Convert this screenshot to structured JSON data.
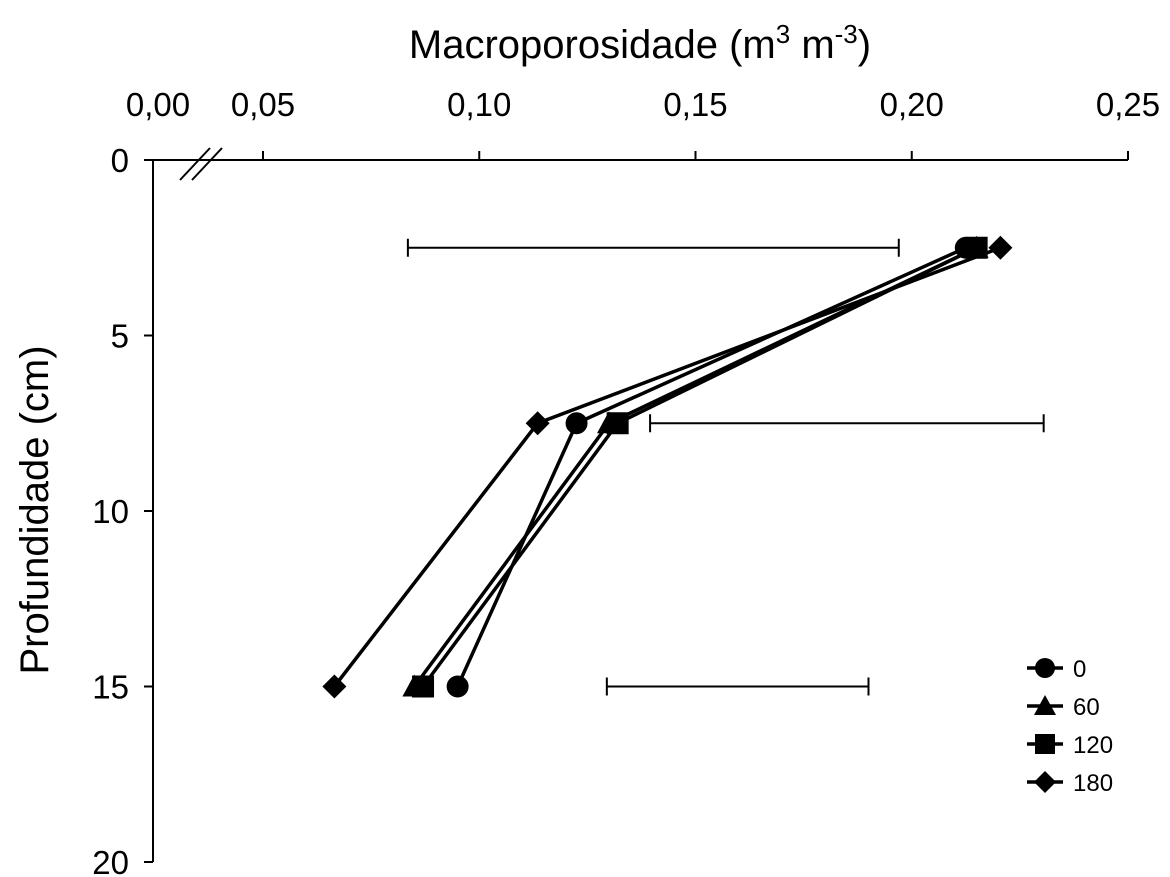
{
  "chart_data": {
    "type": "line",
    "orientation": "depth-profile",
    "title": "",
    "xlabel_text": "Macroporosidade (m",
    "xlabel_sup1": "3",
    "xlabel_mid": " m",
    "xlabel_sup2": "-3",
    "xlabel_end": ")",
    "ylabel": "Profundidade (cm)",
    "x_axis_position": "top",
    "x_axis_break": true,
    "x_ticks": [
      0.0,
      0.05,
      0.1,
      0.15,
      0.2,
      0.25
    ],
    "x_tick_labels": [
      "0,00",
      "0,05",
      "0,10",
      "0,15",
      "0,20",
      "0,25"
    ],
    "y_ticks": [
      0,
      5,
      10,
      15,
      20
    ],
    "y_tick_labels": [
      "0",
      "5",
      "10",
      "15",
      "20"
    ],
    "xlim": [
      0.025,
      0.25
    ],
    "ylim": [
      0,
      20
    ],
    "grid": false,
    "legend_position": "bottom-right",
    "series": [
      {
        "name": "0",
        "marker": "circle",
        "x": [
          0.2125,
          0.1225,
          0.095
        ],
        "y": [
          2.5,
          7.5,
          15
        ]
      },
      {
        "name": "60",
        "marker": "triangle",
        "x": [
          0.215,
          0.13,
          0.085
        ],
        "y": [
          2.5,
          7.5,
          15
        ]
      },
      {
        "name": "120",
        "marker": "square",
        "x": [
          0.215,
          0.132,
          0.087
        ],
        "y": [
          2.5,
          7.5,
          15
        ]
      },
      {
        "name": "180",
        "marker": "diamond",
        "x": [
          0.2205,
          0.1135,
          0.0665
        ],
        "y": [
          2.5,
          7.5,
          15
        ]
      }
    ],
    "error_bars": [
      {
        "y": 2.5,
        "x_from": 0.0835,
        "x_to": 0.197
      },
      {
        "y": 7.5,
        "x_from": 0.1395,
        "x_to": 0.2305
      },
      {
        "y": 15,
        "x_from": 0.1295,
        "x_to": 0.19
      }
    ]
  }
}
